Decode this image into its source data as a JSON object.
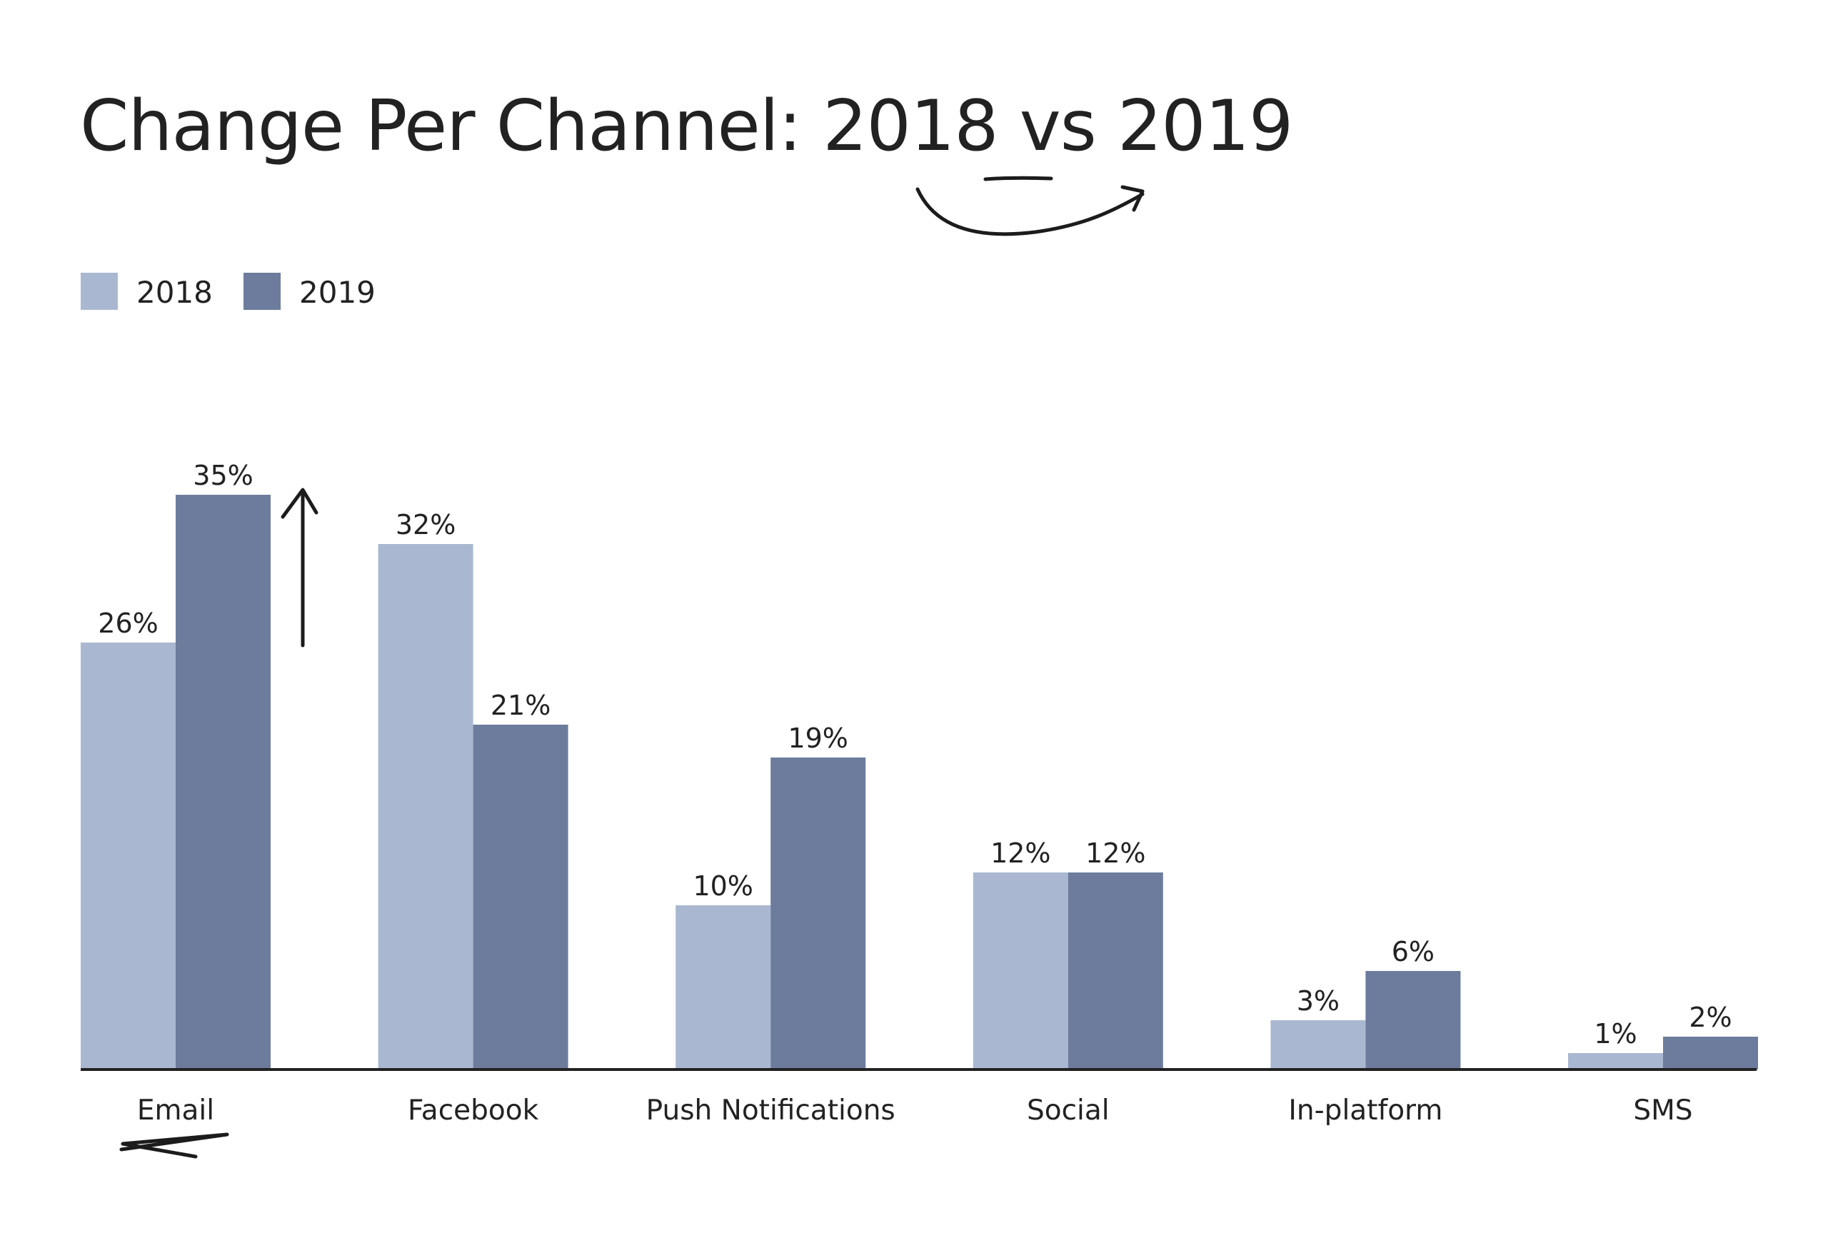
{
  "chart_data": {
    "type": "bar",
    "title": "Change Per Channel: 2018 vs 2019",
    "categories": [
      "Email",
      "Facebook",
      "Push Notifications",
      "Social",
      "In-platform",
      "SMS"
    ],
    "series": [
      {
        "name": "2018",
        "values": [
          26,
          32,
          10,
          12,
          3,
          1
        ],
        "labels": [
          "26%",
          "32%",
          "10%",
          "12%",
          "3%",
          "1%"
        ]
      },
      {
        "name": "2019",
        "values": [
          35,
          21,
          19,
          12,
          6,
          2
        ],
        "labels": [
          "35%",
          "21%",
          "19%",
          "12%",
          "6%",
          "2%"
        ]
      }
    ],
    "xlabel": "",
    "ylabel": "",
    "ylim": [
      0,
      35
    ],
    "grid": false,
    "legend_position": "top-left",
    "colors": {
      "2018": "#a9b8d0",
      "2019": "#6d7c9c",
      "baseline": "#222222",
      "text": "#222222"
    }
  }
}
